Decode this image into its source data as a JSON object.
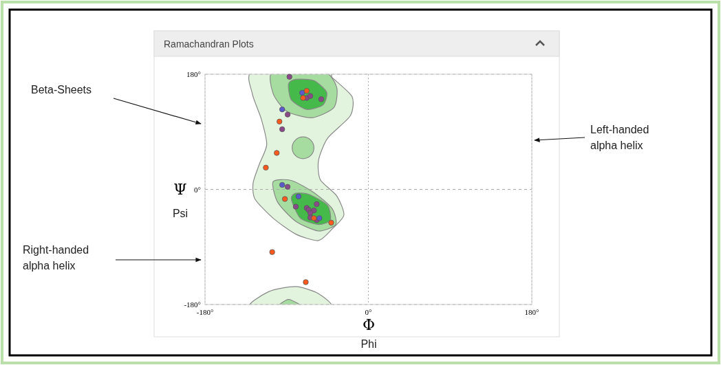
{
  "chart_data": {
    "type": "scatter",
    "title": "Ramachandran Plots",
    "xlabel": "Φ",
    "ylabel": "Ψ",
    "annotations": [
      "Beta-Sheets",
      "Left-handed alpha helix",
      "Right-handed alpha helix",
      "Phi",
      "Psi"
    ],
    "xlim": [
      -180,
      180
    ],
    "ylim": [
      -180,
      180
    ],
    "xticks": [
      {
        "value": -180,
        "label": "-180°"
      },
      {
        "value": 0,
        "label": "0°"
      },
      {
        "value": 180,
        "label": "180°"
      }
    ],
    "yticks": [
      {
        "value": -180,
        "label": "-180°"
      },
      {
        "value": 0,
        "label": "0°"
      },
      {
        "value": 180,
        "label": "180°"
      }
    ],
    "grid": true,
    "marker": "circle",
    "series": [
      {
        "color": "#ff5a1e",
        "x": [
          -68,
          -72,
          -98,
          -101,
          -113,
          -92,
          -60,
          -41,
          -106,
          -69
        ],
        "values": [
          154,
          143,
          106,
          57,
          34,
          -15,
          -45,
          -52,
          -98,
          -145
        ]
      },
      {
        "color": "#5a5acd",
        "x": [
          -73,
          -95,
          -95,
          -77,
          -54
        ],
        "values": [
          151,
          125,
          7,
          -11,
          -45
        ]
      },
      {
        "color": "#8a4a8a",
        "x": [
          -87,
          -68,
          -64,
          -52,
          -89,
          -95,
          -89,
          -80,
          -57,
          -68,
          -66,
          -60,
          -64,
          -64,
          -57
        ],
        "values": [
          176,
          143,
          146,
          141,
          117,
          94,
          4,
          -27,
          -23,
          -29,
          -32,
          -33,
          -37,
          -44,
          -48
        ]
      }
    ]
  }
}
